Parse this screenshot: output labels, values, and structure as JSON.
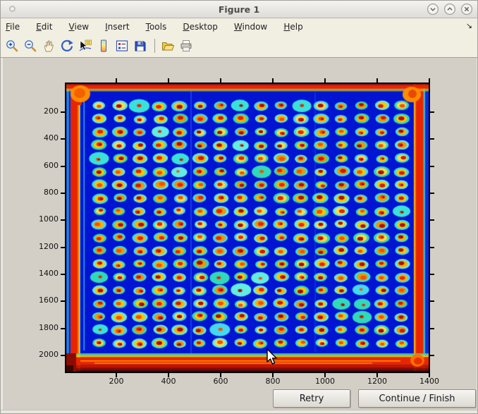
{
  "window": {
    "title": "Figure 1",
    "controls": [
      "minimize",
      "maximize",
      "close"
    ],
    "menu_overflow_glyph": "↘"
  },
  "menubar": {
    "items": [
      "File",
      "Edit",
      "View",
      "Insert",
      "Tools",
      "Desktop",
      "Window",
      "Help"
    ]
  },
  "toolbar": {
    "icons": [
      "zoom-in",
      "zoom-out",
      "pan",
      "rotate-3d",
      "data-cursor",
      "insert-colorbar",
      "insert-legend",
      "save-figure",
      "open-file",
      "print-figure"
    ]
  },
  "axes": {
    "x_ticks": [
      "200",
      "400",
      "600",
      "800",
      "1000",
      "1200",
      "1400"
    ],
    "y_ticks": [
      "200",
      "400",
      "600",
      "800",
      "1000",
      "1200",
      "1400",
      "1600",
      "1800",
      "2000"
    ]
  },
  "buttons": {
    "retry": "Retry",
    "continue_finish": "Continue / Finish"
  },
  "heatmap": {
    "type": "heatmap",
    "description": "jet-colormap scan of a plate: regular grid of warm spots on blue background with hot red edges",
    "x_range": [
      0,
      1400
    ],
    "y_range": [
      0,
      2100
    ],
    "grid": {
      "rows": 19,
      "cols": 16,
      "cx0": 47,
      "cy0": 31,
      "dx": 28.6,
      "dy": 18.7
    },
    "colors": {
      "background": "#0114d2",
      "halo": [
        "#38e2d8",
        "#45d9ef",
        "#2fd9b9",
        "#63ece2"
      ],
      "ring": [
        "#ffc400",
        "#ffae00",
        "#f29500",
        "#ffd84a"
      ],
      "center": [
        "#e62500",
        "#cc1a00",
        "#a81000",
        "#f25200"
      ],
      "edge_red": "#e82500",
      "edge_orange": "#ff7a00",
      "edge_yellow": "#ffd000",
      "edge_cyan": "#2cc9e2",
      "edge_green": "#8ae046",
      "edge_dark_red": "#8a0c00",
      "edge_deep": "#4a0800",
      "edge_blue": "#0a2ae0"
    }
  }
}
